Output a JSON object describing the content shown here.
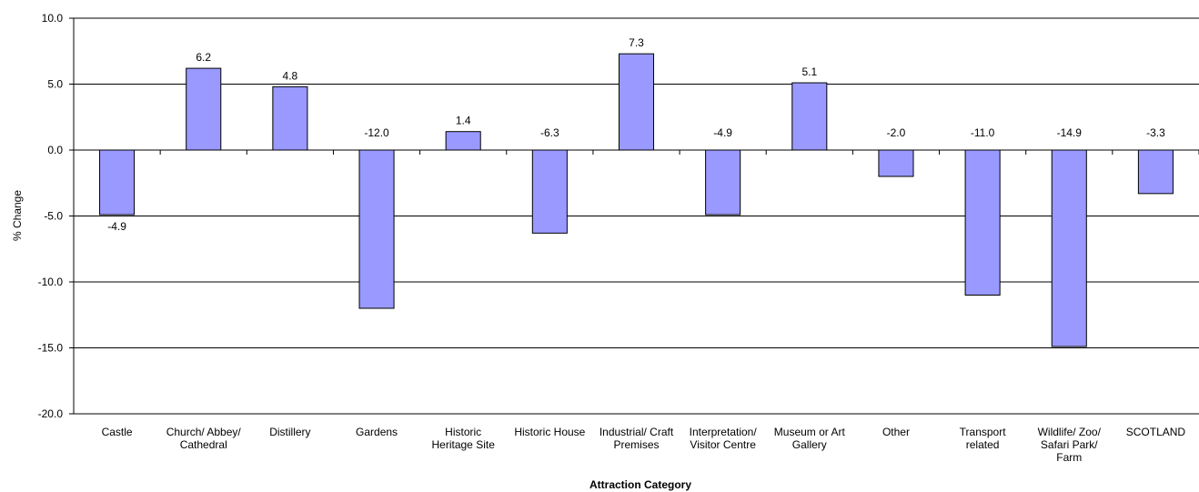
{
  "chart_data": {
    "type": "bar",
    "title": "",
    "xlabel": "Attraction Category",
    "ylabel": "% Change",
    "ylim": [
      -20,
      10
    ],
    "yticks": [
      10,
      5,
      0,
      -5,
      -10,
      -15,
      -20
    ],
    "ytick_labels": [
      "10.0",
      "5.0",
      "0.0",
      "-5.0",
      "-10.0",
      "-15.0",
      "-20.0"
    ],
    "grid": true,
    "legend": "none",
    "categories": [
      "Castle",
      "Church/ Abbey/ Cathedral",
      "Distillery",
      "Gardens",
      "Historic Heritage Site",
      "Historic House",
      "Industrial/ Craft Premises",
      "Interpretation/ Visitor Centre",
      "Museum or Art Gallery",
      "Other",
      "Transport related",
      "Wildlife/ Zoo/ Safari Park/ Farm",
      "SCOTLAND"
    ],
    "category_lines": [
      [
        "Castle"
      ],
      [
        "Church/ Abbey/",
        "Cathedral"
      ],
      [
        "Distillery"
      ],
      [
        "Gardens"
      ],
      [
        "Historic",
        "Heritage Site"
      ],
      [
        "Historic House"
      ],
      [
        "Industrial/ Craft",
        "Premises"
      ],
      [
        "Interpretation/",
        "Visitor Centre"
      ],
      [
        "Museum or Art",
        "Gallery"
      ],
      [
        "Other"
      ],
      [
        "Transport",
        "related"
      ],
      [
        "Wildlife/ Zoo/",
        "Safari Park/",
        "Farm"
      ],
      [
        "SCOTLAND"
      ]
    ],
    "values": [
      -4.9,
      6.2,
      4.8,
      -12.0,
      1.4,
      -6.3,
      7.3,
      -4.9,
      5.1,
      -2.0,
      -11.0,
      -14.9,
      -3.3
    ],
    "value_labels": [
      "-4.9",
      "6.2",
      "4.8",
      "-12.0",
      "1.4",
      "-6.3",
      "7.3",
      "-4.9",
      "5.1",
      "-2.0",
      "-11.0",
      "-14.9",
      "-3.3"
    ],
    "colors": {
      "bar_fill": "#9999ff",
      "bar_stroke": "#000000",
      "grid": "#000000",
      "axis": "#000000"
    }
  }
}
